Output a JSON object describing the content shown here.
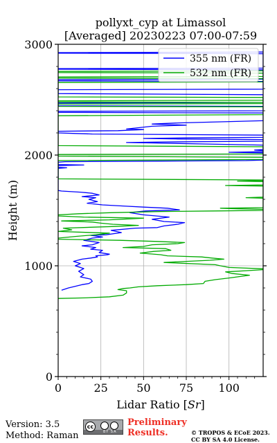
{
  "chart_data": {
    "type": "line",
    "title": "pollyxt_cyp at Limassol",
    "subtitle": "[Averaged] 20230223 07:00-07:59",
    "xlabel_text": "Lidar Ratio [",
    "xlabel_unit": "Sr",
    "xlabel_close": "]",
    "ylabel": "Height (m)",
    "xlim": [
      0,
      120
    ],
    "ylim": [
      0,
      3000
    ],
    "xticks": [
      0,
      25,
      50,
      75,
      100
    ],
    "yticks": [
      0,
      1000,
      2000,
      3000
    ],
    "grid": true,
    "legend_position": "top-right",
    "series": [
      {
        "name": "355 nm (FR)",
        "color": "#0000ff",
        "points": [
          [
            2,
            780
          ],
          [
            6,
            800
          ],
          [
            10,
            815
          ],
          [
            14,
            830
          ],
          [
            18,
            840
          ],
          [
            20,
            860
          ],
          [
            19,
            880
          ],
          [
            13,
            900
          ],
          [
            15,
            920
          ],
          [
            12,
            950
          ],
          [
            15,
            975
          ],
          [
            10,
            1000
          ],
          [
            13,
            1020
          ],
          [
            9,
            1040
          ],
          [
            14,
            1060
          ],
          [
            19,
            1070
          ],
          [
            23,
            1080
          ],
          [
            22,
            1090
          ],
          [
            29,
            1100
          ],
          [
            30,
            1105
          ],
          [
            24,
            1120
          ],
          [
            26,
            1140
          ],
          [
            19,
            1150
          ],
          [
            22,
            1165
          ],
          [
            14,
            1180
          ],
          [
            20,
            1190
          ],
          [
            24,
            1210
          ],
          [
            15,
            1230
          ],
          [
            20,
            1250
          ],
          [
            26,
            1260
          ],
          [
            19,
            1275
          ],
          [
            28,
            1280
          ],
          [
            37,
            1300
          ],
          [
            31,
            1320
          ],
          [
            45,
            1340
          ],
          [
            58,
            1345
          ],
          [
            62,
            1360
          ],
          [
            70,
            1375
          ],
          [
            74,
            1390
          ],
          [
            62,
            1400
          ],
          [
            55,
            1420
          ],
          [
            65,
            1440
          ],
          [
            50,
            1460
          ],
          [
            42,
            1480
          ],
          [
            51,
            1495
          ],
          [
            71,
            1505
          ],
          [
            64,
            1520
          ],
          [
            50,
            1530
          ],
          [
            38,
            1540
          ],
          [
            26,
            1550
          ],
          [
            17,
            1565
          ],
          [
            23,
            1580
          ],
          [
            18,
            1600
          ],
          [
            22,
            1615
          ],
          [
            14,
            1625
          ],
          [
            24,
            1640
          ],
          [
            20,
            1655
          ],
          [
            13,
            1665
          ],
          [
            2,
            1675
          ],
          [
            0,
            1680
          ],
          [
            0,
            1880
          ],
          [
            5,
            1885
          ],
          [
            0,
            1890
          ],
          [
            0,
            1905
          ],
          [
            15,
            1910
          ],
          [
            0,
            1915
          ],
          [
            0,
            1935
          ],
          [
            4,
            1940
          ],
          [
            60,
            1945
          ],
          [
            110,
            1950
          ],
          [
            120,
            1955
          ],
          [
            120,
            2020
          ],
          [
            100,
            2025
          ],
          [
            120,
            2030
          ],
          [
            120,
            2040
          ],
          [
            115,
            2045
          ],
          [
            120,
            2050
          ],
          [
            120,
            2090
          ],
          [
            85,
            2100
          ],
          [
            60,
            2108
          ],
          [
            40,
            2113
          ],
          [
            60,
            2118
          ],
          [
            120,
            2125
          ],
          [
            120,
            2140
          ],
          [
            70,
            2145
          ],
          [
            50,
            2150
          ],
          [
            75,
            2155
          ],
          [
            120,
            2160
          ],
          [
            120,
            2180
          ],
          [
            20,
            2190
          ],
          [
            10,
            2195
          ],
          [
            0,
            2200
          ],
          [
            0,
            2215
          ],
          [
            35,
            2220
          ],
          [
            50,
            2230
          ],
          [
            40,
            2235
          ],
          [
            55,
            2260
          ],
          [
            75,
            2270
          ],
          [
            55,
            2280
          ],
          [
            70,
            2290
          ],
          [
            120,
            2310
          ],
          [
            120,
            2380
          ],
          [
            0,
            2385
          ],
          [
            0,
            2395
          ],
          [
            120,
            2400
          ],
          [
            120,
            2440
          ],
          [
            0,
            2445
          ],
          [
            0,
            2470
          ],
          [
            120,
            2475
          ],
          [
            120,
            2545
          ],
          [
            0,
            2555
          ],
          [
            0,
            2590
          ],
          [
            120,
            2595
          ],
          [
            120,
            2665
          ],
          [
            0,
            2670
          ],
          [
            0,
            2680
          ],
          [
            120,
            2685
          ],
          [
            120,
            2770
          ],
          [
            0,
            2775
          ],
          [
            0,
            2780
          ],
          [
            120,
            2785
          ],
          [
            120,
            2915
          ],
          [
            0,
            2920
          ],
          [
            0,
            2925
          ],
          [
            120,
            2930
          ]
        ]
      },
      {
        "name": "532 nm (FR)",
        "color": "#00aa00",
        "points": [
          [
            0,
            705
          ],
          [
            15,
            710
          ],
          [
            30,
            720
          ],
          [
            38,
            735
          ],
          [
            40,
            755
          ],
          [
            40,
            775
          ],
          [
            35,
            785
          ],
          [
            38,
            795
          ],
          [
            42,
            800
          ],
          [
            47,
            810
          ],
          [
            58,
            820
          ],
          [
            75,
            830
          ],
          [
            85,
            840
          ],
          [
            86,
            860
          ],
          [
            92,
            875
          ],
          [
            100,
            890
          ],
          [
            112,
            915
          ],
          [
            102,
            930
          ],
          [
            98,
            945
          ],
          [
            115,
            960
          ],
          [
            125,
            970
          ],
          [
            100,
            985
          ],
          [
            95,
            1000
          ],
          [
            92,
            1010
          ],
          [
            62,
            1030
          ],
          [
            75,
            1040
          ],
          [
            89,
            1050
          ],
          [
            97,
            1060
          ],
          [
            90,
            1070
          ],
          [
            84,
            1080
          ],
          [
            64,
            1090
          ],
          [
            60,
            1100
          ],
          [
            48,
            1115
          ],
          [
            56,
            1130
          ],
          [
            66,
            1140
          ],
          [
            63,
            1155
          ],
          [
            38,
            1165
          ],
          [
            50,
            1175
          ],
          [
            55,
            1190
          ],
          [
            70,
            1200
          ],
          [
            74,
            1210
          ],
          [
            58,
            1220
          ],
          [
            36,
            1230
          ],
          [
            0,
            1240
          ],
          [
            0,
            1250
          ],
          [
            10,
            1265
          ],
          [
            22,
            1280
          ],
          [
            30,
            1295
          ],
          [
            0,
            1310
          ],
          [
            8,
            1325
          ],
          [
            3,
            1340
          ],
          [
            33,
            1355
          ],
          [
            47,
            1365
          ],
          [
            32,
            1375
          ],
          [
            25,
            1385
          ],
          [
            20,
            1395
          ],
          [
            2,
            1405
          ],
          [
            30,
            1415
          ],
          [
            50,
            1430
          ],
          [
            15,
            1440
          ],
          [
            0,
            1450
          ],
          [
            0,
            1460
          ],
          [
            12,
            1470
          ],
          [
            32,
            1480
          ],
          [
            60,
            1490
          ],
          [
            90,
            1495
          ],
          [
            120,
            1500
          ],
          [
            120,
            1510
          ],
          [
            105,
            1515
          ],
          [
            95,
            1520
          ],
          [
            120,
            1525
          ],
          [
            120,
            1610
          ],
          [
            110,
            1615
          ],
          [
            120,
            1620
          ],
          [
            120,
            1720
          ],
          [
            98,
            1725
          ],
          [
            120,
            1730
          ],
          [
            120,
            1760
          ],
          [
            105,
            1765
          ],
          [
            120,
            1770
          ],
          [
            120,
            1775
          ],
          [
            0,
            1785
          ],
          [
            0,
            1950
          ],
          [
            120,
            1960
          ],
          [
            120,
            1980
          ],
          [
            0,
            1990
          ],
          [
            0,
            2005
          ],
          [
            120,
            2010
          ],
          [
            120,
            2075
          ],
          [
            0,
            2085
          ],
          [
            0,
            2355
          ],
          [
            120,
            2365
          ],
          [
            120,
            2435
          ],
          [
            0,
            2440
          ],
          [
            0,
            2460
          ],
          [
            120,
            2465
          ],
          [
            120,
            2475
          ],
          [
            0,
            2480
          ],
          [
            0,
            2490
          ],
          [
            120,
            2495
          ],
          [
            120,
            2520
          ],
          [
            0,
            2525
          ],
          [
            0,
            2655
          ],
          [
            120,
            2660
          ],
          [
            120,
            2690
          ],
          [
            0,
            2695
          ],
          [
            0,
            2705
          ],
          [
            120,
            2710
          ],
          [
            120,
            2740
          ],
          [
            0,
            2745
          ],
          [
            0,
            2755
          ],
          [
            120,
            2760
          ]
        ]
      }
    ]
  },
  "footer": {
    "version": "Version: 3.5",
    "method": "Method: Raman",
    "preliminary_line1": "Preliminary",
    "preliminary_line2": "Results.",
    "copyright_line1": "© TROPOS & ECoE 2023.",
    "copyright_line2": "CC BY SA 4.0 License."
  }
}
